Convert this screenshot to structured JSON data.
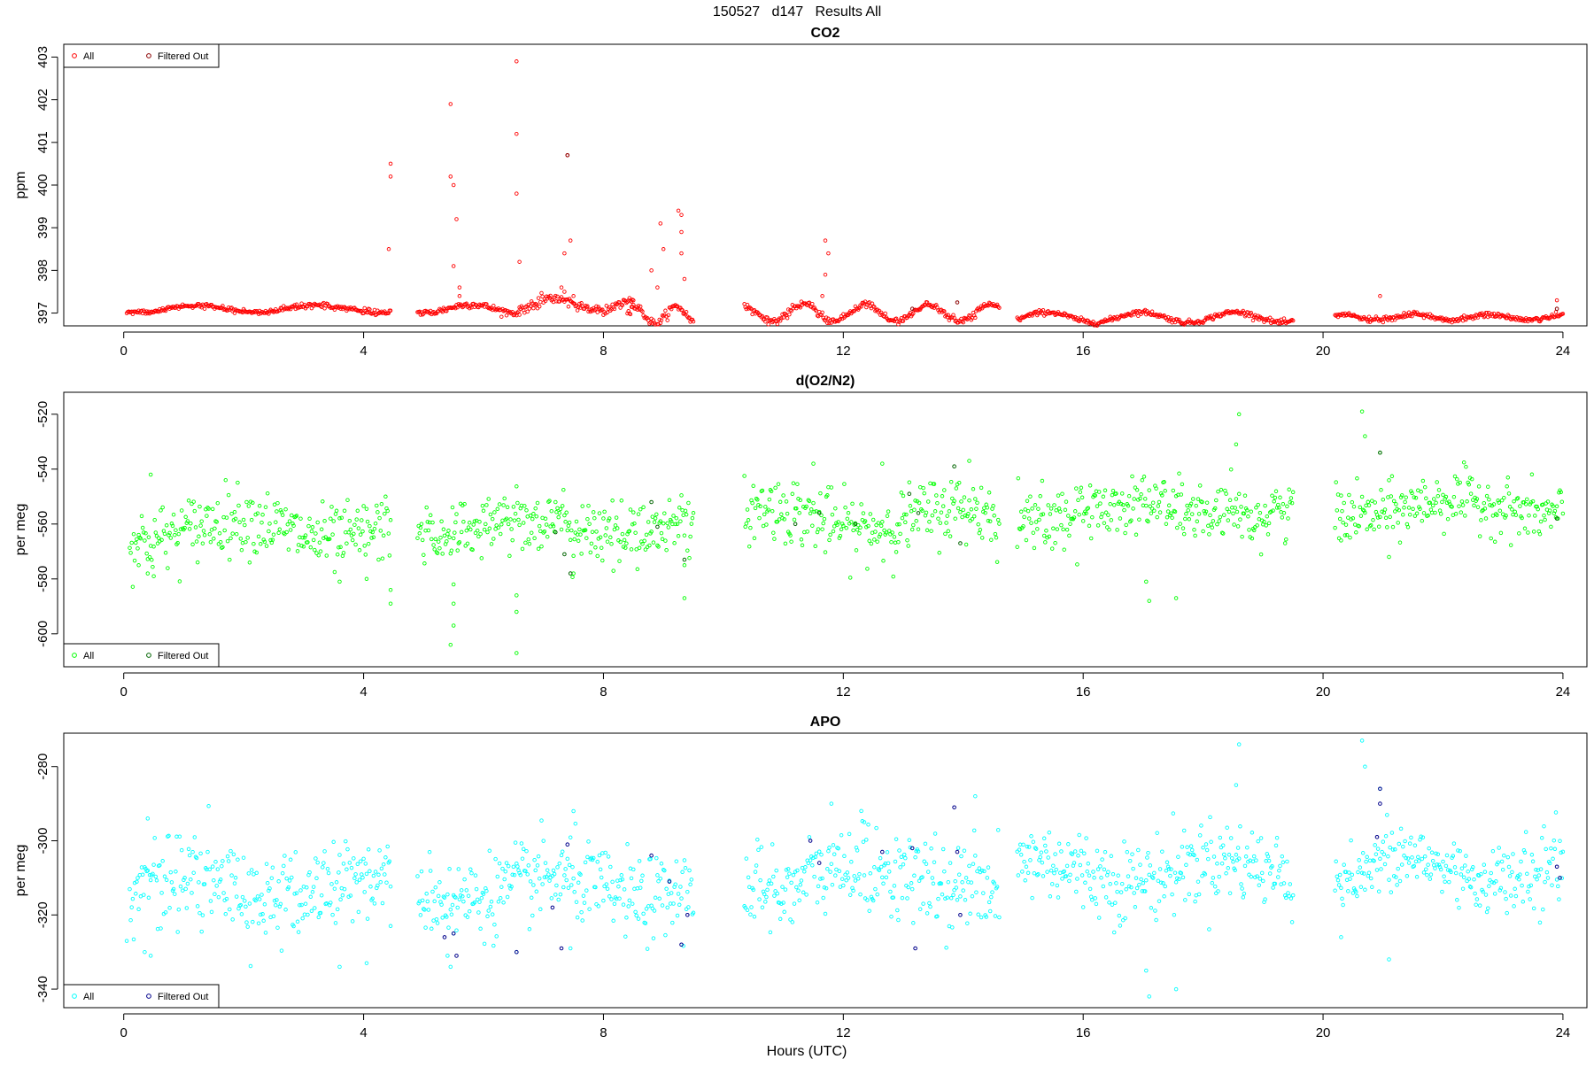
{
  "figure_title": "150527   d147   Results All",
  "x_axis_label": "Hours (UTC)",
  "chart_data": [
    {
      "type": "scatter",
      "title": "CO2",
      "xlabel": "",
      "ylabel": "ppm",
      "xlim": [
        -1,
        24.4
      ],
      "ylim": [
        396.7,
        403.3
      ],
      "xticks": [
        0,
        4,
        8,
        12,
        16,
        20,
        24
      ],
      "yticks": [
        397,
        398,
        399,
        400,
        401,
        402,
        403
      ],
      "legend_position": "top-left",
      "grid": false,
      "colors": {
        "all": "#ff0000",
        "filtered": "#8b0000"
      },
      "legend": [
        "All",
        "Filtered Out"
      ],
      "segments": [
        {
          "x_start": 0.05,
          "x_end": 4.45,
          "base": 397.1,
          "amp": 0.08,
          "freq": 3.1,
          "noise": 0.03
        },
        {
          "x_start": 4.9,
          "x_end": 6.6,
          "base": 397.1,
          "amp": 0.1,
          "freq": 4.0,
          "noise": 0.04
        },
        {
          "x_start": 6.6,
          "x_end": 8.5,
          "base": 397.2,
          "amp": 0.14,
          "freq": 4.5,
          "noise": 0.05
        },
        {
          "x_start": 8.4,
          "x_end": 9.5,
          "base": 396.95,
          "amp": 0.2,
          "freq": 9.0,
          "noise": 0.05
        },
        {
          "x_start": 10.35,
          "x_end": 14.6,
          "base": 397.0,
          "amp": 0.2,
          "freq": 6.0,
          "noise": 0.04
        },
        {
          "x_start": 14.9,
          "x_end": 19.5,
          "base": 396.9,
          "amp": 0.12,
          "freq": 4.0,
          "noise": 0.03
        },
        {
          "x_start": 20.2,
          "x_end": 24.0,
          "base": 396.9,
          "amp": 0.06,
          "freq": 5.0,
          "noise": 0.03
        }
      ],
      "outliers": [
        [
          4.45,
          400.5
        ],
        [
          4.45,
          400.2
        ],
        [
          4.42,
          398.5
        ],
        [
          5.45,
          401.9
        ],
        [
          5.45,
          400.2
        ],
        [
          5.5,
          400.0
        ],
        [
          5.55,
          399.2
        ],
        [
          5.5,
          398.1
        ],
        [
          5.6,
          397.6
        ],
        [
          5.6,
          397.4
        ],
        [
          6.55,
          402.9
        ],
        [
          6.55,
          401.2
        ],
        [
          6.55,
          399.8
        ],
        [
          6.6,
          398.2
        ],
        [
          7.4,
          400.7
        ],
        [
          7.45,
          398.7
        ],
        [
          7.35,
          398.4
        ],
        [
          7.3,
          397.6
        ],
        [
          7.35,
          397.5
        ],
        [
          7.5,
          397.4
        ],
        [
          8.8,
          398.0
        ],
        [
          8.9,
          397.6
        ],
        [
          8.95,
          399.1
        ],
        [
          9.0,
          398.5
        ],
        [
          9.25,
          399.4
        ],
        [
          9.3,
          399.3
        ],
        [
          9.3,
          398.9
        ],
        [
          9.3,
          398.4
        ],
        [
          9.35,
          397.8
        ],
        [
          11.7,
          398.7
        ],
        [
          11.75,
          398.4
        ],
        [
          11.7,
          397.9
        ],
        [
          11.65,
          397.4
        ],
        [
          20.95,
          397.4
        ],
        [
          23.9,
          397.3
        ]
      ],
      "filtered": [
        [
          7.4,
          400.7
        ],
        [
          13.15,
          397.1
        ],
        [
          13.9,
          397.25
        ],
        [
          23.9,
          397.1
        ]
      ]
    },
    {
      "type": "scatter",
      "title": "d(O2/N2)",
      "xlabel": "",
      "ylabel": "per meg",
      "xlim": [
        -1,
        24.4
      ],
      "ylim": [
        -612,
        -512
      ],
      "xticks": [
        0,
        4,
        8,
        12,
        16,
        20,
        24
      ],
      "yticks": [
        -600,
        -580,
        -560,
        -540,
        -520
      ],
      "legend_position": "bottom-left",
      "grid": false,
      "colors": {
        "all": "#00ff00",
        "filtered": "#006400"
      },
      "legend": [
        "All",
        "Filtered Out"
      ],
      "segments": [
        {
          "x_start": 0.1,
          "x_end": 4.45,
          "base": -562,
          "amp": 4,
          "freq": 2.0,
          "noise": 6
        },
        {
          "x_start": 4.9,
          "x_end": 9.5,
          "base": -561,
          "amp": 3,
          "freq": 2.0,
          "noise": 5.5
        },
        {
          "x_start": 10.35,
          "x_end": 14.6,
          "base": -558,
          "amp": 4,
          "freq": 2.0,
          "noise": 6
        },
        {
          "x_start": 14.9,
          "x_end": 19.5,
          "base": -555,
          "amp": 3,
          "freq": 2.0,
          "noise": 5.5
        },
        {
          "x_start": 20.2,
          "x_end": 24.0,
          "base": -554,
          "amp": 3,
          "freq": 2.0,
          "noise": 5
        }
      ],
      "outliers": [
        [
          0.45,
          -542
        ],
        [
          0.25,
          -575
        ],
        [
          0.4,
          -578
        ],
        [
          0.5,
          -579
        ],
        [
          3.6,
          -581
        ],
        [
          4.05,
          -580
        ],
        [
          4.45,
          -584
        ],
        [
          4.45,
          -589
        ],
        [
          5.5,
          -582
        ],
        [
          5.5,
          -589
        ],
        [
          5.5,
          -597
        ],
        [
          5.45,
          -604
        ],
        [
          6.55,
          -586
        ],
        [
          6.55,
          -592
        ],
        [
          6.55,
          -607
        ],
        [
          7.5,
          -578
        ],
        [
          9.35,
          -587
        ],
        [
          9.35,
          -575
        ],
        [
          11.5,
          -538
        ],
        [
          12.65,
          -538
        ],
        [
          14.1,
          -537
        ],
        [
          17.05,
          -581
        ],
        [
          17.1,
          -588
        ],
        [
          17.55,
          -587
        ],
        [
          18.6,
          -520
        ],
        [
          18.55,
          -531
        ],
        [
          20.65,
          -519
        ],
        [
          20.7,
          -528
        ],
        [
          20.95,
          -534
        ],
        [
          21.1,
          -572
        ],
        [
          20.3,
          -566
        ]
      ],
      "filtered": [
        [
          7.2,
          -563
        ],
        [
          7.35,
          -571
        ],
        [
          7.45,
          -578
        ],
        [
          8.8,
          -552
        ],
        [
          8.9,
          -561
        ],
        [
          9.35,
          -573
        ],
        [
          11.2,
          -560
        ],
        [
          11.6,
          -556
        ],
        [
          12.2,
          -560
        ],
        [
          13.1,
          -549
        ],
        [
          13.25,
          -556
        ],
        [
          13.85,
          -539
        ],
        [
          13.95,
          -567
        ],
        [
          20.95,
          -534
        ],
        [
          23.9,
          -558
        ]
      ]
    },
    {
      "type": "scatter",
      "title": "APO",
      "xlabel": "Hours (UTC)",
      "ylabel": "per meg",
      "xlim": [
        -1,
        24.4
      ],
      "ylim": [
        -345,
        -271
      ],
      "xticks": [
        0,
        4,
        8,
        12,
        16,
        20,
        24
      ],
      "yticks": [
        -340,
        -320,
        -300,
        -280
      ],
      "legend_position": "bottom-left",
      "grid": false,
      "colors": {
        "all": "#00ffff",
        "filtered": "#00008b"
      },
      "legend": [
        "All",
        "Filtered Out"
      ],
      "segments": [
        {
          "x_start": 0.1,
          "x_end": 4.45,
          "base": -313,
          "amp": 3,
          "freq": 2.0,
          "noise": 6
        },
        {
          "x_start": 4.9,
          "x_end": 9.5,
          "base": -313,
          "amp": 3,
          "freq": 2.0,
          "noise": 5.5
        },
        {
          "x_start": 10.35,
          "x_end": 14.6,
          "base": -310,
          "amp": 3,
          "freq": 2.0,
          "noise": 6
        },
        {
          "x_start": 14.9,
          "x_end": 19.5,
          "base": -308,
          "amp": 3,
          "freq": 2.0,
          "noise": 5.5
        },
        {
          "x_start": 20.2,
          "x_end": 24.0,
          "base": -308,
          "amp": 3,
          "freq": 2.0,
          "noise": 5
        }
      ],
      "outliers": [
        [
          0.4,
          -294
        ],
        [
          0.45,
          -331
        ],
        [
          0.35,
          -330
        ],
        [
          0.05,
          -327
        ],
        [
          3.6,
          -334
        ],
        [
          4.05,
          -333
        ],
        [
          4.45,
          -323
        ],
        [
          5.4,
          -331
        ],
        [
          5.45,
          -334
        ],
        [
          5.5,
          -325
        ],
        [
          6.55,
          -330
        ],
        [
          7.5,
          -292
        ],
        [
          7.45,
          -329
        ],
        [
          11.8,
          -290
        ],
        [
          12.35,
          -295
        ],
        [
          14.2,
          -288
        ],
        [
          17.05,
          -335
        ],
        [
          17.1,
          -342
        ],
        [
          17.55,
          -340
        ],
        [
          18.6,
          -274
        ],
        [
          18.55,
          -285
        ],
        [
          20.65,
          -273
        ],
        [
          20.7,
          -280
        ],
        [
          20.95,
          -286
        ],
        [
          21.1,
          -332
        ],
        [
          20.3,
          -326
        ]
      ],
      "filtered": [
        [
          5.35,
          -326
        ],
        [
          5.5,
          -325
        ],
        [
          5.55,
          -331
        ],
        [
          6.55,
          -330
        ],
        [
          7.15,
          -318
        ],
        [
          7.3,
          -329
        ],
        [
          7.4,
          -301
        ],
        [
          8.8,
          -304
        ],
        [
          9.1,
          -311
        ],
        [
          9.3,
          -328
        ],
        [
          9.4,
          -320
        ],
        [
          11.45,
          -300
        ],
        [
          11.6,
          -306
        ],
        [
          12.65,
          -303
        ],
        [
          13.15,
          -302
        ],
        [
          13.2,
          -329
        ],
        [
          13.85,
          -291
        ],
        [
          13.9,
          -303
        ],
        [
          13.95,
          -320
        ],
        [
          20.95,
          -286
        ],
        [
          20.95,
          -290
        ],
        [
          20.9,
          -299
        ],
        [
          23.9,
          -307
        ],
        [
          23.95,
          -310
        ]
      ]
    }
  ]
}
